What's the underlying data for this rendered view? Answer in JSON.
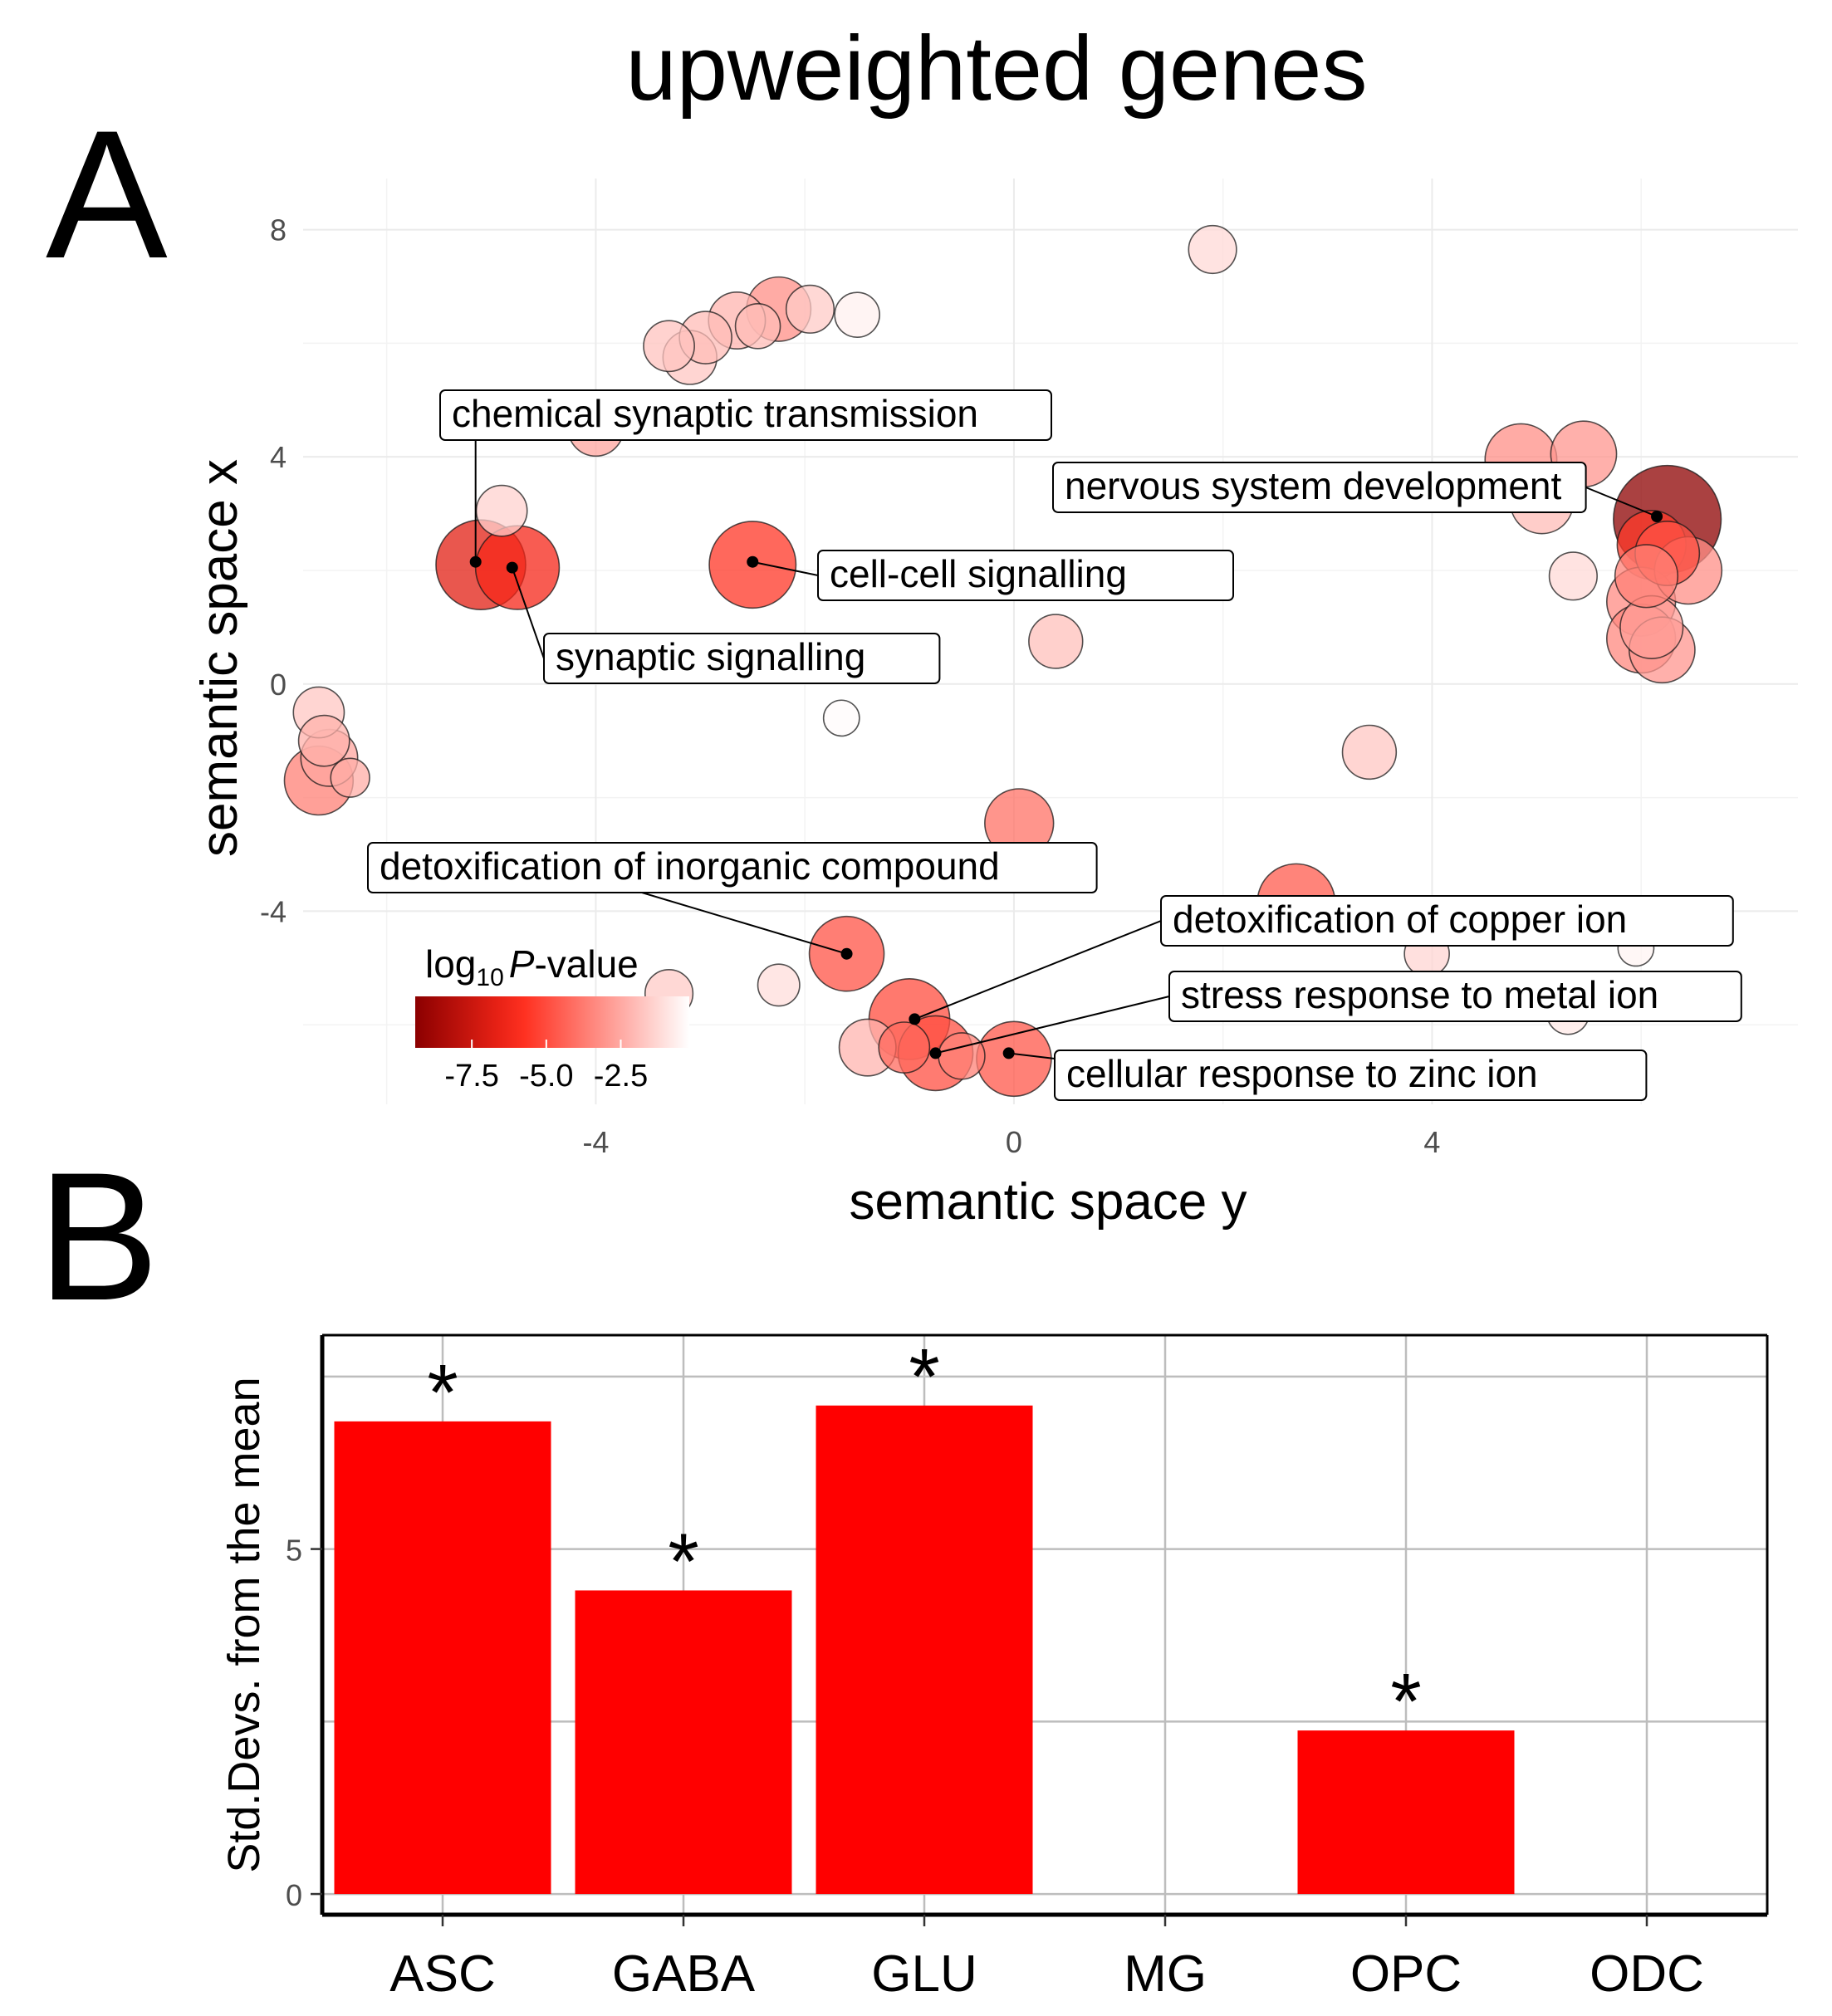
{
  "figure_title": "upweighted genes",
  "panel_labels": {
    "a": "A",
    "b": "B"
  },
  "chart_data": [
    {
      "panel": "A",
      "type": "scatter",
      "xlabel": "semantic space y",
      "ylabel": "semantic space x",
      "xlim": [
        -6.8,
        7.5
      ],
      "ylim": [
        -7.4,
        8.9
      ],
      "xticks": [
        -4,
        0,
        4
      ],
      "yticks": [
        -4,
        0,
        4,
        8
      ],
      "grid": true,
      "legend": {
        "title_prefix": "log",
        "title_sub": "10",
        "title_italic": "P",
        "title_suffix": "-value",
        "tick_labels": [
          "-7.5",
          "-5.0",
          "-2.5"
        ],
        "tick_values": [
          -7.5,
          -5.0,
          -2.5
        ],
        "range": [
          -9.4,
          -0.2
        ],
        "placement": "bottom-left"
      },
      "color_scale": {
        "low": "#8b0000",
        "mid": "#ff2a1a",
        "high": "#ffffff"
      },
      "points": [
        {
          "x": 1.9,
          "y": 7.65,
          "size": 3.2,
          "logp": -1.2
        },
        {
          "x": -3.3,
          "y": 5.95,
          "size": 3.4,
          "logp": -1.8
        },
        {
          "x": -3.1,
          "y": 5.75,
          "size": 3.6,
          "logp": -1.7
        },
        {
          "x": -2.95,
          "y": 6.1,
          "size": 3.5,
          "logp": -2.0
        },
        {
          "x": -2.65,
          "y": 6.4,
          "size": 3.8,
          "logp": -2.2
        },
        {
          "x": -2.45,
          "y": 6.3,
          "size": 3.0,
          "logp": -2.0
        },
        {
          "x": -2.25,
          "y": 6.6,
          "size": 4.3,
          "logp": -3.2
        },
        {
          "x": -1.95,
          "y": 6.6,
          "size": 3.2,
          "logp": -1.6
        },
        {
          "x": -1.5,
          "y": 6.5,
          "size": 3.0,
          "logp": -0.6
        },
        {
          "x": -4.0,
          "y": 4.5,
          "size": 3.7,
          "logp": -2.6
        },
        {
          "x": -4.9,
          "y": 3.05,
          "size": 3.4,
          "logp": -1.4
        },
        {
          "x": -5.1,
          "y": 2.1,
          "size": 6.0,
          "logp": -6.8
        },
        {
          "x": -4.75,
          "y": 2.05,
          "size": 5.6,
          "logp": -6.2
        },
        {
          "x": -2.5,
          "y": 2.1,
          "size": 5.8,
          "logp": -5.6
        },
        {
          "x": 0.4,
          "y": 0.75,
          "size": 3.6,
          "logp": -1.9
        },
        {
          "x": -1.65,
          "y": -0.6,
          "size": 2.4,
          "logp": -0.3
        },
        {
          "x": -6.65,
          "y": -0.5,
          "size": 3.4,
          "logp": -1.7
        },
        {
          "x": -6.6,
          "y": -1.0,
          "size": 3.4,
          "logp": -2.3
        },
        {
          "x": -6.55,
          "y": -1.3,
          "size": 3.8,
          "logp": -2.6
        },
        {
          "x": -6.65,
          "y": -1.7,
          "size": 4.6,
          "logp": -3.6
        },
        {
          "x": -6.35,
          "y": -1.65,
          "size": 2.6,
          "logp": -2.4
        },
        {
          "x": 3.4,
          "y": -1.2,
          "size": 3.6,
          "logp": -1.7
        },
        {
          "x": 0.05,
          "y": -2.45,
          "size": 4.6,
          "logp": -4.0
        },
        {
          "x": 2.7,
          "y": -3.85,
          "size": 5.2,
          "logp": -4.6
        },
        {
          "x": 3.95,
          "y": -4.75,
          "size": 3.0,
          "logp": -1.3
        },
        {
          "x": -1.6,
          "y": -4.75,
          "size": 5.0,
          "logp": -4.8
        },
        {
          "x": -3.3,
          "y": -5.45,
          "size": 3.2,
          "logp": -1.6
        },
        {
          "x": -2.25,
          "y": -5.3,
          "size": 2.8,
          "logp": -1.1
        },
        {
          "x": -1.4,
          "y": -6.4,
          "size": 3.8,
          "logp": -2.2
        },
        {
          "x": -1.0,
          "y": -5.9,
          "size": 5.4,
          "logp": -5.0
        },
        {
          "x": -1.05,
          "y": -6.4,
          "size": 3.4,
          "logp": -4.2
        },
        {
          "x": -0.75,
          "y": -6.5,
          "size": 5.0,
          "logp": -4.9
        },
        {
          "x": -0.5,
          "y": -6.55,
          "size": 3.1,
          "logp": -3.6
        },
        {
          "x": 0.0,
          "y": -6.6,
          "size": 5.0,
          "logp": -4.7
        },
        {
          "x": 5.3,
          "y": -5.8,
          "size": 2.8,
          "logp": -0.8
        },
        {
          "x": 5.95,
          "y": -4.65,
          "size": 2.4,
          "logp": -0.5
        },
        {
          "x": 4.85,
          "y": 3.95,
          "size": 4.8,
          "logp": -3.2
        },
        {
          "x": 5.05,
          "y": 3.2,
          "size": 4.2,
          "logp": -2.0
        },
        {
          "x": 5.45,
          "y": 4.05,
          "size": 4.4,
          "logp": -3.0
        },
        {
          "x": 5.35,
          "y": 1.9,
          "size": 3.2,
          "logp": -1.2
        },
        {
          "x": 6.1,
          "y": 2.45,
          "size": 4.6,
          "logp": -5.5
        },
        {
          "x": 6.45,
          "y": 2.0,
          "size": 4.5,
          "logp": -3.2
        },
        {
          "x": 6.25,
          "y": 2.3,
          "size": 4.3,
          "logp": -4.8
        },
        {
          "x": 6.0,
          "y": 1.45,
          "size": 4.6,
          "logp": -3.3
        },
        {
          "x": 6.0,
          "y": 0.8,
          "size": 4.6,
          "logp": -3.4
        },
        {
          "x": 6.1,
          "y": 1.0,
          "size": 4.2,
          "logp": -2.8
        },
        {
          "x": 6.05,
          "y": 1.9,
          "size": 4.2,
          "logp": -3.6
        },
        {
          "x": 6.2,
          "y": 0.6,
          "size": 4.4,
          "logp": -3.0
        },
        {
          "x": 6.25,
          "y": 2.9,
          "size": 7.2,
          "logp": -9.3
        }
      ],
      "annotations": [
        {
          "text": "chemical synaptic transmission",
          "x": -5.15,
          "y": 2.15
        },
        {
          "text": "synaptic signalling",
          "x": -4.8,
          "y": 2.05
        },
        {
          "text": "cell-cell signalling",
          "x": -2.5,
          "y": 2.15
        },
        {
          "text": "nervous system development",
          "x": 6.15,
          "y": 2.95
        },
        {
          "text": "detoxification of inorganic compound",
          "x": -1.6,
          "y": -4.75
        },
        {
          "text": "detoxification of copper ion",
          "x": -0.95,
          "y": -5.9
        },
        {
          "text": "stress response to metal ion",
          "x": -0.75,
          "y": -6.5
        },
        {
          "text": "cellular response to zinc ion",
          "x": -0.05,
          "y": -6.5
        }
      ]
    },
    {
      "panel": "B",
      "type": "bar",
      "categories": [
        "ASC",
        "GABA",
        "GLU",
        "MG",
        "OPC",
        "ODC"
      ],
      "values": [
        6.85,
        4.4,
        7.08,
        0,
        2.37,
        0
      ],
      "significant": [
        true,
        true,
        true,
        false,
        true,
        false
      ],
      "marker": "*",
      "ylabel": "Std.Devs. from the mean",
      "yticks": [
        0,
        5
      ],
      "ylim": [
        -0.3,
        8.1
      ],
      "bar_color": "#ff0000",
      "grid": true
    }
  ]
}
